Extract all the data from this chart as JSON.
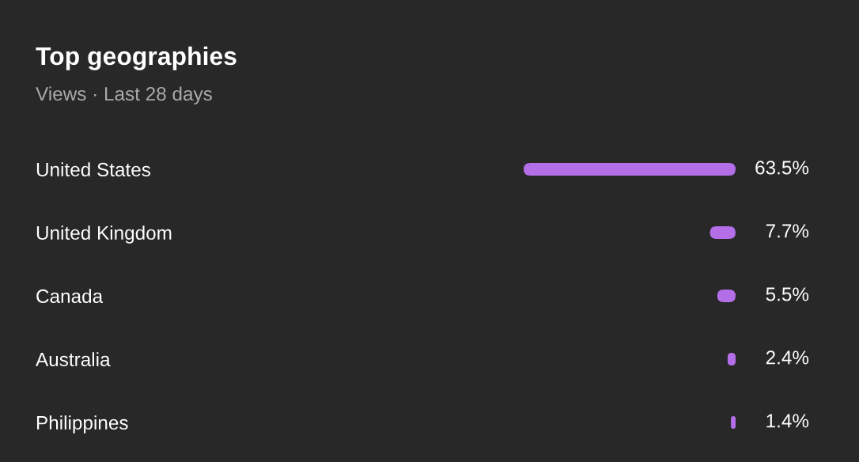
{
  "chart_data": {
    "type": "bar",
    "orientation": "horizontal",
    "title": "Top geographies",
    "subtitle": "Views · Last 28 days",
    "categories": [
      "United States",
      "United Kingdom",
      "Canada",
      "Australia",
      "Philippines"
    ],
    "values": [
      63.5,
      7.7,
      5.5,
      2.4,
      1.4
    ],
    "value_labels": [
      "63.5%",
      "7.7%",
      "5.5%",
      "2.4%",
      "1.4%"
    ],
    "color": "#b46ee8",
    "tick_labels": "y"
  }
}
